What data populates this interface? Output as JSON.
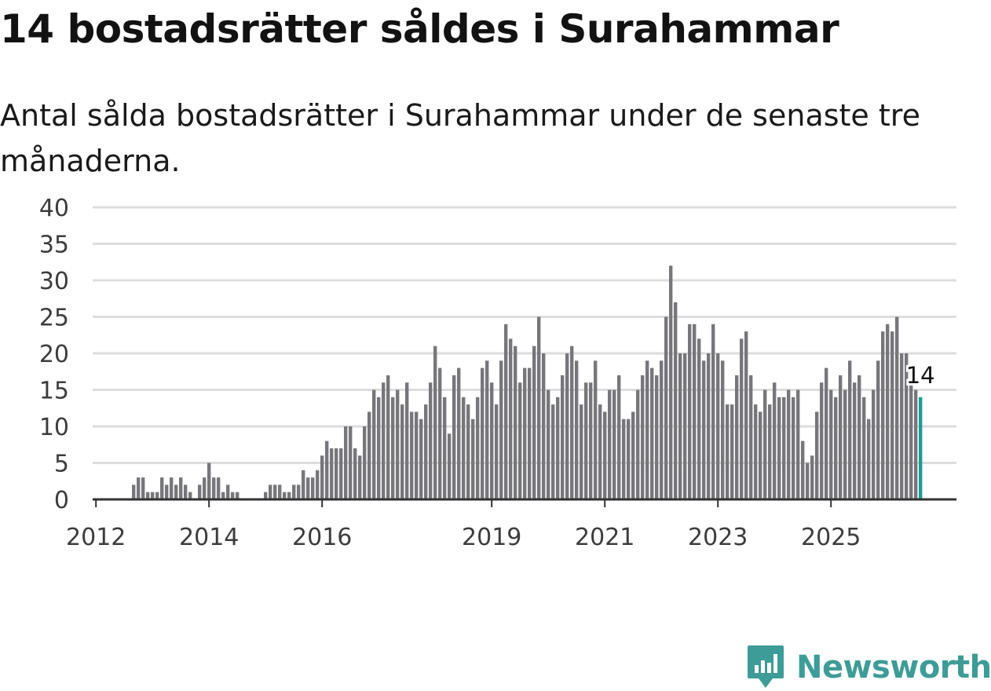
{
  "header": {
    "title": "14 bostadsrätter såldes i Surahammar",
    "subtitle": "Antal sålda bostadsrätter i Surahammar under de senaste tre månaderna."
  },
  "branding": {
    "logo_text": "Newsworthy",
    "logo_icon": "bar-chart-badge-icon"
  },
  "colors": {
    "bar": "#77767b",
    "highlight": "#1a9e92",
    "grid": "#dddddd",
    "axis": "#333333",
    "logo": "#3d9c97"
  },
  "chart_data": {
    "type": "bar",
    "title": "14 bostadsrätter såldes i Surahammar",
    "xlabel": "",
    "ylabel": "",
    "ylim": [
      0,
      40
    ],
    "yticks": [
      0,
      5,
      10,
      15,
      20,
      25,
      30,
      35,
      40
    ],
    "xtick_labels": [
      {
        "label": "2012",
        "index": 0
      },
      {
        "label": "2014",
        "index": 24
      },
      {
        "label": "2016",
        "index": 48
      },
      {
        "label": "2019",
        "index": 84
      },
      {
        "label": "2021",
        "index": 108
      },
      {
        "label": "2023",
        "index": 132
      },
      {
        "label": "2025",
        "index": 156
      }
    ],
    "start": "2011-06",
    "values": [
      0,
      0,
      0,
      0,
      0,
      0,
      0,
      0,
      2,
      3,
      3,
      1,
      1,
      1,
      3,
      2,
      3,
      2,
      3,
      2,
      1,
      0,
      2,
      3,
      5,
      3,
      3,
      1,
      2,
      1,
      1,
      0,
      0,
      0,
      0,
      0,
      1,
      2,
      2,
      2,
      1,
      1,
      2,
      2,
      4,
      3,
      3,
      4,
      6,
      8,
      7,
      7,
      7,
      10,
      10,
      7,
      6,
      10,
      12,
      15,
      14,
      16,
      17,
      14,
      15,
      13,
      16,
      12,
      12,
      11,
      13,
      16,
      21,
      18,
      14,
      9,
      17,
      18,
      14,
      13,
      11,
      14,
      18,
      19,
      16,
      13,
      19,
      24,
      22,
      21,
      16,
      18,
      18,
      21,
      25,
      20,
      15,
      13,
      14,
      17,
      20,
      21,
      19,
      13,
      16,
      16,
      19,
      13,
      12,
      15,
      15,
      17,
      11,
      11,
      12,
      15,
      17,
      19,
      18,
      17,
      19,
      25,
      32,
      27,
      20,
      20,
      24,
      24,
      22,
      19,
      20,
      24,
      20,
      19,
      13,
      13,
      17,
      22,
      23,
      17,
      13,
      12,
      15,
      13,
      16,
      14,
      14,
      15,
      14,
      15,
      8,
      5,
      6,
      12,
      16,
      18,
      15,
      14,
      17,
      15,
      19,
      16,
      17,
      14,
      11,
      15,
      19,
      23,
      24,
      23,
      25,
      20,
      20,
      16,
      15,
      14
    ],
    "highlight_last": true,
    "annotation": {
      "text": "14",
      "index": 175
    }
  }
}
